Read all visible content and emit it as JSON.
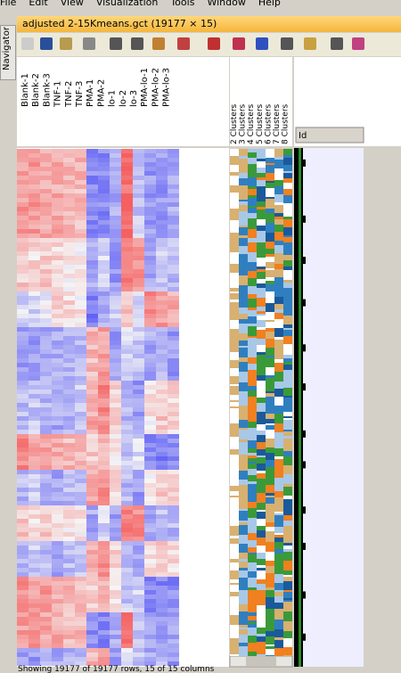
{
  "menu": [
    "File",
    "Edit",
    "View",
    "Visualization",
    "Tools",
    "Window",
    "Help"
  ],
  "navigator": "Navigator",
  "window_title": "adjusted 2-15Kmeans.gct (19177 × 15)",
  "columns": [
    "Blank-1",
    "Blank-2",
    "Blank-3",
    "TNF-1",
    "TNF-2",
    "TNF-3",
    "PMA-1",
    "PMA-2",
    "lo-1",
    "lo-2",
    "lo-3",
    "PMA-lo-1",
    "PMA-lo-2",
    "PMA-lo-3"
  ],
  "cluster_columns": [
    "2 Clusters",
    "3 Clusters",
    "4 Clusters",
    "5 Clusters",
    "6 Clusters",
    "7 Clusters",
    "8 Clusters"
  ],
  "id_header": "Id",
  "status": "Showing 19177 of 19177 rows, 15 of 15 columns"
}
